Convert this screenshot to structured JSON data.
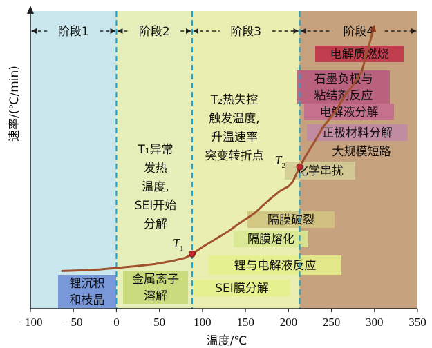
{
  "chart_data": {
    "type": "line",
    "xlabel": "温度/℃",
    "ylabel": "速率/(℃/min)",
    "xlim": [
      -100,
      350
    ],
    "x_ticks": [
      -100,
      -50,
      0,
      50,
      100,
      150,
      200,
      250,
      300,
      350
    ],
    "y_ticks": [],
    "grid": false,
    "stages": [
      {
        "label": "阶段1",
        "x_range": [
          -100,
          0
        ],
        "color": "#c9e7ec"
      },
      {
        "label": "阶段2",
        "x_range": [
          0,
          88
        ],
        "color": "#e6efb9"
      },
      {
        "label": "阶段3",
        "x_range": [
          88,
          213
        ],
        "color": "#eaeeb0"
      },
      {
        "label": "阶段4",
        "x_range": [
          213,
          350
        ],
        "color": "#c6a27f"
      }
    ],
    "boundaries": [
      0,
      88,
      213
    ],
    "series": [
      {
        "color": "#a0522d",
        "x": [
          -64,
          -40,
          -20,
          0,
          20,
          45,
          65,
          80,
          88,
          100,
          115,
          130,
          145,
          160,
          170,
          180,
          190,
          200,
          205,
          213,
          220,
          230,
          240,
          255,
          265,
          275,
          285,
          300
        ],
        "y": [
          0.4,
          0.5,
          0.6,
          0.8,
          1.0,
          1.3,
          1.7,
          2.1,
          2.6,
          3.5,
          4.5,
          5.5,
          6.7,
          7.8,
          8.8,
          9.8,
          10.7,
          11.3,
          11.9,
          13.8,
          15.2,
          17.0,
          18.9,
          21.0,
          22.9,
          24.3,
          26.0,
          32.0
        ]
      }
    ],
    "points": [
      {
        "label": "T",
        "sub": "1",
        "x": 88,
        "y": 2.6
      },
      {
        "label": "T",
        "sub": "2",
        "x": 213,
        "y": 13.8
      }
    ],
    "stage_notes": [
      {
        "id": "t1",
        "lines": [
          "T₁异常",
          "发热",
          "温度,",
          "SEI开始",
          "分解"
        ]
      },
      {
        "id": "t2",
        "lines": [
          "T₂热失控",
          "触发温度,",
          "升温速率",
          "突变转折点"
        ]
      }
    ],
    "events": [
      {
        "text": "锂沉积",
        "color": "#6f8fd8"
      },
      {
        "text": "和枝晶",
        "color": "#6f8fd8"
      },
      {
        "text": "金属离子",
        "color": "#c4d978"
      },
      {
        "text": "溶解",
        "color": "#c4d978"
      },
      {
        "text": "SEI膜分解",
        "color": "#e4ef8c"
      },
      {
        "text": "锂与电解液反应",
        "color": "#e4ef8c"
      },
      {
        "text": "隔膜熔化",
        "color": "#d8e892"
      },
      {
        "text": "隔膜破裂",
        "color": "#d0c280"
      },
      {
        "text": "化学串扰",
        "color": "#d3cc96"
      },
      {
        "text": "大规模短路",
        "color": "#c6a27f"
      },
      {
        "text": "正极材料分解",
        "color": "#c08aa6"
      },
      {
        "text": "电解液分解",
        "color": "#c46a8e"
      },
      {
        "text": "石墨负极与",
        "color": "#b85a7e"
      },
      {
        "text": "粘结剂反应",
        "color": "#b85a7e"
      },
      {
        "text": "电解质燃烧",
        "color": "#c0334a"
      }
    ]
  }
}
